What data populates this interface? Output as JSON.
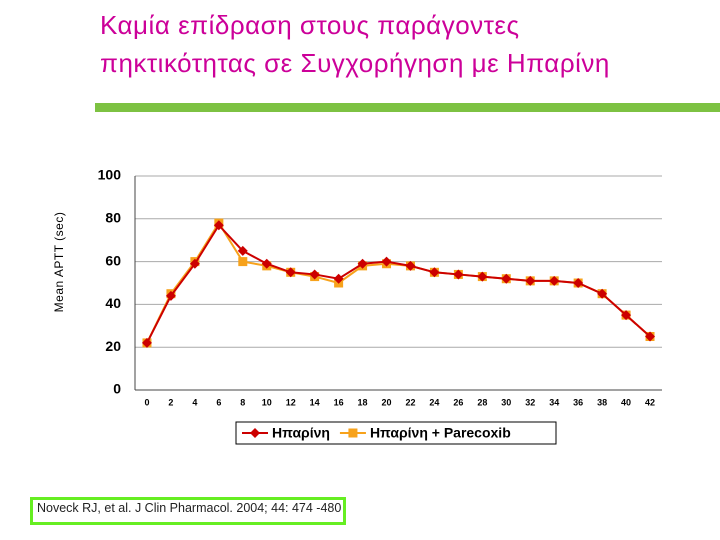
{
  "title": "Καμία επίδραση στους παράγοντες πηκτικότητας σε Συγχορήγηση με Ηπαρίνη",
  "citation": "Noveck RJ, et al. J Clin Pharmacol. 2004; 44: 474 -480",
  "chart_data": {
    "type": "line",
    "y_label": "Mean APTT (sec)",
    "x": [
      0,
      2,
      4,
      6,
      8,
      10,
      12,
      14,
      16,
      18,
      20,
      22,
      24,
      26,
      28,
      30,
      32,
      34,
      36,
      38,
      40,
      42
    ],
    "series": [
      {
        "name": "Ηπαρίνη",
        "color": "#cc0000",
        "marker": "diamond",
        "values": [
          22,
          44,
          59,
          77,
          65,
          59,
          55,
          54,
          52,
          59,
          60,
          58,
          55,
          54,
          53,
          52,
          51,
          51,
          50,
          45,
          35,
          25
        ]
      },
      {
        "name": "Ηπαρίνη + Parecoxib",
        "color": "#f7a21b",
        "marker": "square",
        "values": [
          22,
          45,
          60,
          78,
          60,
          58,
          55,
          53,
          50,
          58,
          59,
          58,
          55,
          54,
          53,
          52,
          51,
          51,
          50,
          45,
          35,
          25
        ]
      }
    ],
    "xlim": [
      -1,
      43
    ],
    "ylim": [
      0,
      100
    ],
    "xticks": [
      0,
      2,
      4,
      6,
      8,
      10,
      12,
      14,
      16,
      18,
      20,
      22,
      24,
      26,
      28,
      30,
      32,
      34,
      36,
      38,
      40,
      42
    ],
    "yticks": [
      0,
      20,
      40,
      60,
      80,
      100
    ],
    "grid": true,
    "legend": "bottom"
  }
}
